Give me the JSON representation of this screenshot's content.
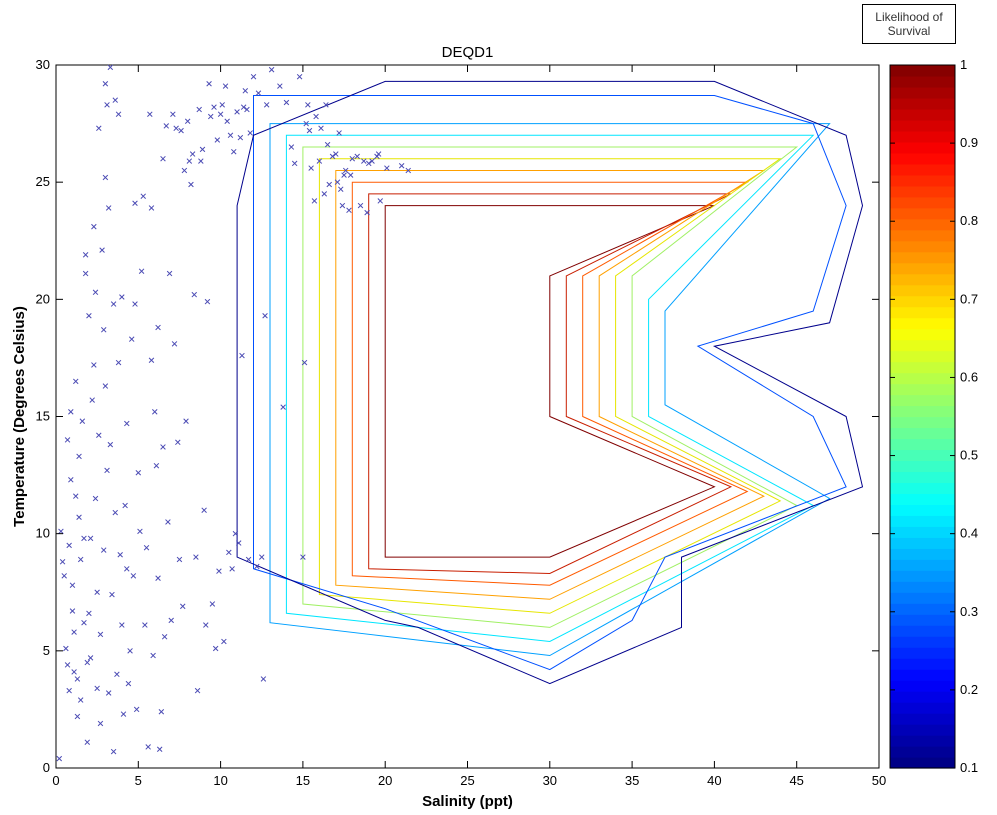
{
  "colorbar_header": {
    "line1": "Likelihood of",
    "line2": "Survival"
  },
  "chart_data": {
    "type": "scatter",
    "title": "DEQD1",
    "xlabel": "Salinity (ppt)",
    "ylabel": "Temperature (Degrees Celsius)",
    "xlim": [
      0,
      50
    ],
    "ylim": [
      0,
      30
    ],
    "xticks": [
      0,
      5,
      10,
      15,
      20,
      25,
      30,
      35,
      40,
      45,
      50
    ],
    "yticks": [
      0,
      5,
      10,
      15,
      20,
      25,
      30
    ],
    "grid": false,
    "marker": "x",
    "marker_color": "#4b4bb4",
    "colorbar": {
      "label": "Likelihood of Survival",
      "range": [
        0.1,
        1
      ],
      "ticks": [
        0.1,
        0.2,
        0.3,
        0.4,
        0.5,
        0.6,
        0.7,
        0.8,
        0.9,
        1
      ],
      "colormap": "jet"
    },
    "contours": [
      {
        "level": 1.0,
        "color": "#800000",
        "points": [
          [
            20,
            24
          ],
          [
            40,
            24
          ],
          [
            30,
            21
          ],
          [
            30,
            15
          ],
          [
            40,
            12
          ],
          [
            30,
            9
          ],
          [
            20,
            9
          ]
        ]
      },
      {
        "level": 0.9,
        "color": "#c81e00",
        "points": [
          [
            19,
            24.5
          ],
          [
            41,
            24.5
          ],
          [
            31,
            21
          ],
          [
            31,
            18
          ],
          [
            31,
            15
          ],
          [
            41,
            12
          ],
          [
            30,
            8.3
          ],
          [
            19,
            8.5
          ]
        ]
      },
      {
        "level": 0.8,
        "color": "#ff5a00",
        "points": [
          [
            18,
            25
          ],
          [
            42,
            25
          ],
          [
            32,
            21
          ],
          [
            32,
            18
          ],
          [
            32,
            15
          ],
          [
            42,
            11.8
          ],
          [
            30,
            7.8
          ],
          [
            18,
            8.2
          ]
        ]
      },
      {
        "level": 0.7,
        "color": "#ffa000",
        "points": [
          [
            17,
            25.5
          ],
          [
            43,
            25.5
          ],
          [
            33,
            21
          ],
          [
            33,
            18
          ],
          [
            33,
            15
          ],
          [
            43,
            11.6
          ],
          [
            30,
            7.2
          ],
          [
            17,
            7.8
          ]
        ]
      },
      {
        "level": 0.6,
        "color": "#e6e600",
        "points": [
          [
            16,
            26
          ],
          [
            44,
            26
          ],
          [
            34,
            21
          ],
          [
            34,
            18
          ],
          [
            34,
            15
          ],
          [
            44,
            11.4
          ],
          [
            30,
            6.6
          ],
          [
            16,
            7.4
          ]
        ]
      },
      {
        "level": 0.5,
        "color": "#a0f064",
        "points": [
          [
            15,
            26.5
          ],
          [
            45,
            26.5
          ],
          [
            35,
            21
          ],
          [
            35,
            18
          ],
          [
            35,
            15
          ],
          [
            45,
            11.2
          ],
          [
            30,
            6
          ],
          [
            15,
            7
          ]
        ]
      },
      {
        "level": 0.4,
        "color": "#00e6ff",
        "points": [
          [
            14,
            27
          ],
          [
            46,
            27
          ],
          [
            36,
            20
          ],
          [
            36,
            18
          ],
          [
            36,
            15
          ],
          [
            46,
            11.2
          ],
          [
            30,
            5.4
          ],
          [
            14,
            6.6
          ]
        ]
      },
      {
        "level": 0.3,
        "color": "#00a0ff",
        "points": [
          [
            13,
            27.5
          ],
          [
            47,
            27.5
          ],
          [
            37,
            19.5
          ],
          [
            37,
            18
          ],
          [
            37,
            15.5
          ],
          [
            47,
            11.5
          ],
          [
            30,
            4.8
          ],
          [
            13,
            6.2
          ]
        ]
      },
      {
        "level": 0.2,
        "color": "#0050ff",
        "points": [
          [
            12,
            28.7
          ],
          [
            40,
            28.7
          ],
          [
            46,
            27.5
          ],
          [
            48,
            24
          ],
          [
            46,
            19.5
          ],
          [
            39,
            18
          ],
          [
            46,
            15
          ],
          [
            48,
            12
          ],
          [
            37,
            9
          ],
          [
            35,
            6.3
          ],
          [
            30,
            4.2
          ],
          [
            20,
            6.8
          ],
          [
            12,
            8.5
          ],
          [
            12,
            27
          ]
        ]
      },
      {
        "level": 0.1,
        "color": "#00008c",
        "points": [
          [
            11,
            24
          ],
          [
            12,
            27
          ],
          [
            20,
            29.3
          ],
          [
            40,
            29.3
          ],
          [
            48,
            27
          ],
          [
            49,
            24
          ],
          [
            47,
            19
          ],
          [
            40,
            18
          ],
          [
            48,
            15
          ],
          [
            49,
            12
          ],
          [
            38,
            9
          ],
          [
            38,
            6
          ],
          [
            30,
            3.6
          ],
          [
            22,
            6
          ],
          [
            20,
            6.3
          ],
          [
            11,
            9
          ]
        ]
      }
    ],
    "points": [
      [
        0.2,
        0.4
      ],
      [
        0.3,
        10.1
      ],
      [
        0.4,
        8.8
      ],
      [
        0.5,
        8.2
      ],
      [
        0.6,
        5.1
      ],
      [
        0.7,
        14
      ],
      [
        0.7,
        4.4
      ],
      [
        0.8,
        3.3
      ],
      [
        0.8,
        9.5
      ],
      [
        0.9,
        12.3
      ],
      [
        0.9,
        15.2
      ],
      [
        1.0,
        7.8
      ],
      [
        1.0,
        6.7
      ],
      [
        1.1,
        5.8
      ],
      [
        1.1,
        4.1
      ],
      [
        1.2,
        11.6
      ],
      [
        1.2,
        16.5
      ],
      [
        1.3,
        2.2
      ],
      [
        1.3,
        3.8
      ],
      [
        1.4,
        10.7
      ],
      [
        1.4,
        13.3
      ],
      [
        1.5,
        8.9
      ],
      [
        1.5,
        2.9
      ],
      [
        1.6,
        14.8
      ],
      [
        1.7,
        9.8
      ],
      [
        1.7,
        6.2
      ],
      [
        1.8,
        21.9
      ],
      [
        1.8,
        21.1
      ],
      [
        1.9,
        1.1
      ],
      [
        1.9,
        4.5
      ],
      [
        2.0,
        19.3
      ],
      [
        2.0,
        6.6
      ],
      [
        2.1,
        4.7
      ],
      [
        2.1,
        9.8
      ],
      [
        2.2,
        15.7
      ],
      [
        2.3,
        17.2
      ],
      [
        2.3,
        23.1
      ],
      [
        2.4,
        20.3
      ],
      [
        2.4,
        11.5
      ],
      [
        2.5,
        7.5
      ],
      [
        2.5,
        3.4
      ],
      [
        2.6,
        27.3
      ],
      [
        2.6,
        14.2
      ],
      [
        2.7,
        5.7
      ],
      [
        2.7,
        1.9
      ],
      [
        2.8,
        22.1
      ],
      [
        2.9,
        18.7
      ],
      [
        2.9,
        9.3
      ],
      [
        3.0,
        29.2
      ],
      [
        3.0,
        25.2
      ],
      [
        3.0,
        16.3
      ],
      [
        3.1,
        28.3
      ],
      [
        3.1,
        12.7
      ],
      [
        3.2,
        23.9
      ],
      [
        3.2,
        3.2
      ],
      [
        3.3,
        29.9
      ],
      [
        3.3,
        13.8
      ],
      [
        3.4,
        7.4
      ],
      [
        3.5,
        19.8
      ],
      [
        3.5,
        0.7
      ],
      [
        3.6,
        28.5
      ],
      [
        3.6,
        10.9
      ],
      [
        3.7,
        4.0
      ],
      [
        3.8,
        27.9
      ],
      [
        3.8,
        17.3
      ],
      [
        3.9,
        9.1
      ],
      [
        4.0,
        20.1
      ],
      [
        4.0,
        6.1
      ],
      [
        4.1,
        2.3
      ],
      [
        4.2,
        11.2
      ],
      [
        4.3,
        14.7
      ],
      [
        4.3,
        8.5
      ],
      [
        4.4,
        3.6
      ],
      [
        4.5,
        5.0
      ],
      [
        4.6,
        18.3
      ],
      [
        4.7,
        8.2
      ],
      [
        4.8,
        24.1
      ],
      [
        4.8,
        19.8
      ],
      [
        4.9,
        2.5
      ],
      [
        5.0,
        12.6
      ],
      [
        5.1,
        10.1
      ],
      [
        5.2,
        21.2
      ],
      [
        5.3,
        24.4
      ],
      [
        5.4,
        6.1
      ],
      [
        5.5,
        9.4
      ],
      [
        5.6,
        0.9
      ],
      [
        5.7,
        27.9
      ],
      [
        5.8,
        17.4
      ],
      [
        5.8,
        23.9
      ],
      [
        5.9,
        4.8
      ],
      [
        6.0,
        15.2
      ],
      [
        6.1,
        12.9
      ],
      [
        6.2,
        18.8
      ],
      [
        6.2,
        8.1
      ],
      [
        6.3,
        0.8
      ],
      [
        6.4,
        2.4
      ],
      [
        6.5,
        26.0
      ],
      [
        6.5,
        13.7
      ],
      [
        6.6,
        5.6
      ],
      [
        6.7,
        27.4
      ],
      [
        6.8,
        10.5
      ],
      [
        6.9,
        21.1
      ],
      [
        7.0,
        6.3
      ],
      [
        7.1,
        27.9
      ],
      [
        7.2,
        18.1
      ],
      [
        7.3,
        27.3
      ],
      [
        7.4,
        13.9
      ],
      [
        7.5,
        8.9
      ],
      [
        7.6,
        27.2
      ],
      [
        7.7,
        6.9
      ],
      [
        7.8,
        25.5
      ],
      [
        7.9,
        14.8
      ],
      [
        8.0,
        27.6
      ],
      [
        8.1,
        25.9
      ],
      [
        8.2,
        24.9
      ],
      [
        8.3,
        26.2
      ],
      [
        8.4,
        20.2
      ],
      [
        8.5,
        9.0
      ],
      [
        8.6,
        3.3
      ],
      [
        8.7,
        28.1
      ],
      [
        8.8,
        25.9
      ],
      [
        8.9,
        26.4
      ],
      [
        9.0,
        11.0
      ],
      [
        9.1,
        6.1
      ],
      [
        9.2,
        19.9
      ],
      [
        9.3,
        29.2
      ],
      [
        9.4,
        27.8
      ],
      [
        9.5,
        7.0
      ],
      [
        9.6,
        28.2
      ],
      [
        9.7,
        5.1
      ],
      [
        9.8,
        26.8
      ],
      [
        9.9,
        8.4
      ],
      [
        10.0,
        27.9
      ],
      [
        10.1,
        28.3
      ],
      [
        10.2,
        5.4
      ],
      [
        10.3,
        29.1
      ],
      [
        10.4,
        27.6
      ],
      [
        10.5,
        9.2
      ],
      [
        10.6,
        27.0
      ],
      [
        10.7,
        8.5
      ],
      [
        10.8,
        26.3
      ],
      [
        10.9,
        10.0
      ],
      [
        11.0,
        28.0
      ],
      [
        11.1,
        9.6
      ],
      [
        11.2,
        26.9
      ],
      [
        11.3,
        17.6
      ],
      [
        11.4,
        28.2
      ],
      [
        11.5,
        28.9
      ],
      [
        11.6,
        28.1
      ],
      [
        11.7,
        8.9
      ],
      [
        11.8,
        27.1
      ],
      [
        12.0,
        29.5
      ],
      [
        12.2,
        8.6
      ],
      [
        12.3,
        28.8
      ],
      [
        12.5,
        9.0
      ],
      [
        12.6,
        3.8
      ],
      [
        12.7,
        19.3
      ],
      [
        12.8,
        28.3
      ],
      [
        13.1,
        29.8
      ],
      [
        13.6,
        29.1
      ],
      [
        13.8,
        15.4
      ],
      [
        14.0,
        28.4
      ],
      [
        14.3,
        26.5
      ],
      [
        14.5,
        25.8
      ],
      [
        14.8,
        29.5
      ],
      [
        15.0,
        9.0
      ],
      [
        15.1,
        17.3
      ],
      [
        15.2,
        27.5
      ],
      [
        15.3,
        28.3
      ],
      [
        15.4,
        27.2
      ],
      [
        15.5,
        25.6
      ],
      [
        15.7,
        24.2
      ],
      [
        15.8,
        27.8
      ],
      [
        16.0,
        25.9
      ],
      [
        16.1,
        27.3
      ],
      [
        16.3,
        24.5
      ],
      [
        16.4,
        28.3
      ],
      [
        16.5,
        26.6
      ],
      [
        16.6,
        24.9
      ],
      [
        16.8,
        26.1
      ],
      [
        17.0,
        26.2
      ],
      [
        17.1,
        25.0
      ],
      [
        17.2,
        27.1
      ],
      [
        17.3,
        24.7
      ],
      [
        17.4,
        24.0
      ],
      [
        17.5,
        25.3
      ],
      [
        17.6,
        25.5
      ],
      [
        17.8,
        23.8
      ],
      [
        17.9,
        25.3
      ],
      [
        18.0,
        26.0
      ],
      [
        18.3,
        26.1
      ],
      [
        18.5,
        24.0
      ],
      [
        18.7,
        25.9
      ],
      [
        18.9,
        23.7
      ],
      [
        19.0,
        25.8
      ],
      [
        19.2,
        25.9
      ],
      [
        19.5,
        26.1
      ],
      [
        19.6,
        26.2
      ],
      [
        19.7,
        24.2
      ],
      [
        20.1,
        25.6
      ],
      [
        21.0,
        25.7
      ],
      [
        21.4,
        25.5
      ]
    ]
  }
}
